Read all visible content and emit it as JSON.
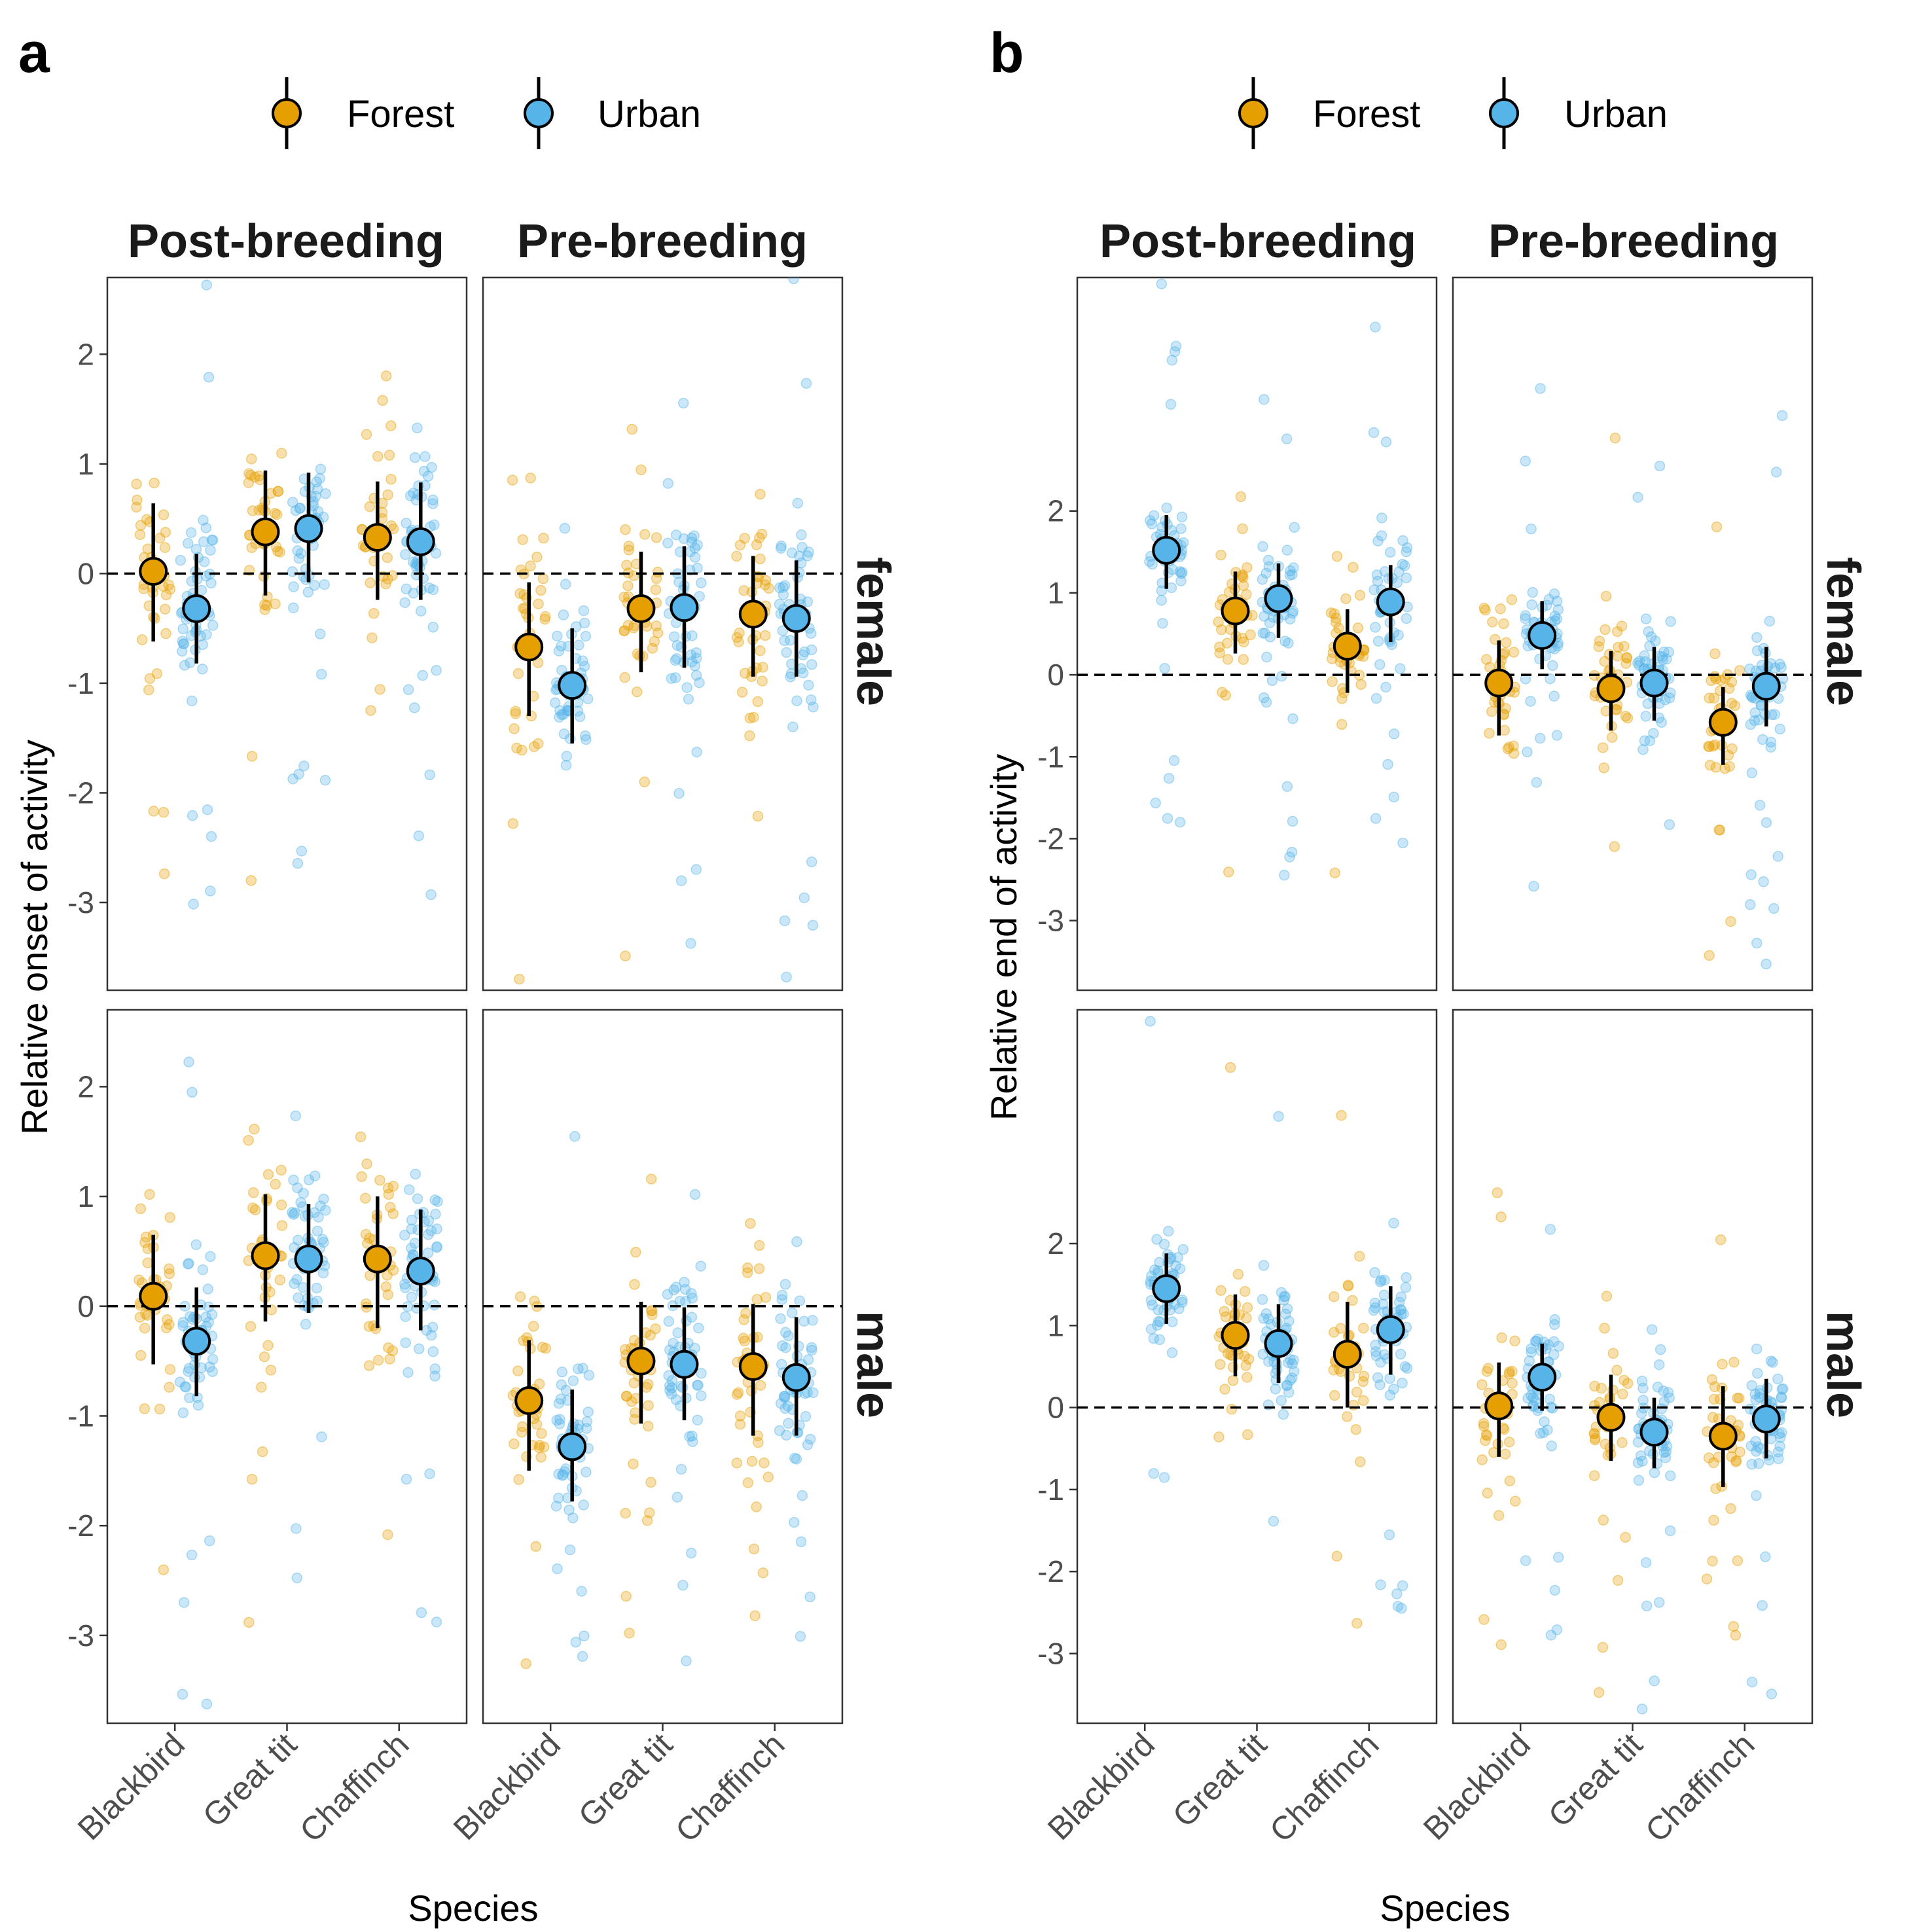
{
  "colors": {
    "forest": "#E69F00",
    "urban": "#56B4E9",
    "frame": "#333333",
    "tick_text": "#4d4d4d",
    "reference_line": "#000000"
  },
  "legend": {
    "items": [
      {
        "key": "forest",
        "label": "Forest"
      },
      {
        "key": "urban",
        "label": "Urban"
      }
    ],
    "placement": "top"
  },
  "x_axis_title": "Species",
  "chart_data": [
    {
      "panel_label": "a",
      "type": "scatter",
      "ylabel": "Relative onset of activity",
      "xlabel": "Species",
      "categories": [
        "Blackbird",
        "Great tit",
        "Chaffinch"
      ],
      "facet_columns": [
        "Post-breeding",
        "Pre-breeding"
      ],
      "facet_rows": [
        "female",
        "male"
      ],
      "ylim": [
        -3.8,
        2.7
      ],
      "yticks": [
        -3,
        -2,
        -1,
        0,
        1,
        2
      ],
      "reference_line_y": 0,
      "facets": [
        {
          "column": "Post-breeding",
          "row": "female",
          "estimates": [
            {
              "species": "Blackbird",
              "habitat": "Forest",
              "mean": 0.02,
              "lower": -0.62,
              "upper": 0.64
            },
            {
              "species": "Blackbird",
              "habitat": "Urban",
              "mean": -0.32,
              "lower": -0.82,
              "upper": 0.18
            },
            {
              "species": "Great tit",
              "habitat": "Forest",
              "mean": 0.38,
              "lower": -0.2,
              "upper": 0.94
            },
            {
              "species": "Great tit",
              "habitat": "Urban",
              "mean": 0.41,
              "lower": -0.08,
              "upper": 0.92
            },
            {
              "species": "Chaffinch",
              "habitat": "Forest",
              "mean": 0.33,
              "lower": -0.24,
              "upper": 0.84
            },
            {
              "species": "Chaffinch",
              "habitat": "Urban",
              "mean": 0.29,
              "lower": -0.24,
              "upper": 0.83
            }
          ]
        },
        {
          "column": "Pre-breeding",
          "row": "female",
          "estimates": [
            {
              "species": "Blackbird",
              "habitat": "Forest",
              "mean": -0.67,
              "lower": -1.3,
              "upper": -0.08
            },
            {
              "species": "Blackbird",
              "habitat": "Urban",
              "mean": -1.02,
              "lower": -1.55,
              "upper": -0.5
            },
            {
              "species": "Great tit",
              "habitat": "Forest",
              "mean": -0.32,
              "lower": -0.9,
              "upper": 0.2
            },
            {
              "species": "Great tit",
              "habitat": "Urban",
              "mean": -0.31,
              "lower": -0.86,
              "upper": 0.25
            },
            {
              "species": "Chaffinch",
              "habitat": "Forest",
              "mean": -0.37,
              "lower": -0.94,
              "upper": 0.16
            },
            {
              "species": "Chaffinch",
              "habitat": "Urban",
              "mean": -0.41,
              "lower": -0.94,
              "upper": 0.12
            }
          ]
        },
        {
          "column": "Post-breeding",
          "row": "male",
          "estimates": [
            {
              "species": "Blackbird",
              "habitat": "Forest",
              "mean": 0.09,
              "lower": -0.53,
              "upper": 0.65
            },
            {
              "species": "Blackbird",
              "habitat": "Urban",
              "mean": -0.32,
              "lower": -0.82,
              "upper": 0.17
            },
            {
              "species": "Great tit",
              "habitat": "Forest",
              "mean": 0.46,
              "lower": -0.14,
              "upper": 1.02
            },
            {
              "species": "Great tit",
              "habitat": "Urban",
              "mean": 0.43,
              "lower": -0.06,
              "upper": 0.93
            },
            {
              "species": "Chaffinch",
              "habitat": "Forest",
              "mean": 0.43,
              "lower": -0.2,
              "upper": 1.0
            },
            {
              "species": "Chaffinch",
              "habitat": "Urban",
              "mean": 0.32,
              "lower": -0.22,
              "upper": 0.88
            }
          ]
        },
        {
          "column": "Pre-breeding",
          "row": "male",
          "estimates": [
            {
              "species": "Blackbird",
              "habitat": "Forest",
              "mean": -0.86,
              "lower": -1.5,
              "upper": -0.31
            },
            {
              "species": "Blackbird",
              "habitat": "Urban",
              "mean": -1.28,
              "lower": -1.78,
              "upper": -0.76
            },
            {
              "species": "Great tit",
              "habitat": "Forest",
              "mean": -0.5,
              "lower": -1.07,
              "upper": 0.04
            },
            {
              "species": "Great tit",
              "habitat": "Urban",
              "mean": -0.53,
              "lower": -1.04,
              "upper": -0.01
            },
            {
              "species": "Chaffinch",
              "habitat": "Forest",
              "mean": -0.55,
              "lower": -1.18,
              "upper": 0.02
            },
            {
              "species": "Chaffinch",
              "habitat": "Urban",
              "mean": -0.65,
              "lower": -1.18,
              "upper": -0.1
            }
          ]
        }
      ]
    },
    {
      "panel_label": "b",
      "type": "scatter",
      "ylabel": "Relative end of activity",
      "xlabel": "Species",
      "categories": [
        "Blackbird",
        "Great tit",
        "Chaffinch"
      ],
      "facet_columns": [
        "Post-breeding",
        "Pre-breeding"
      ],
      "facet_rows": [
        "female",
        "male"
      ],
      "ylim": [
        -3.85,
        4.85
      ],
      "yticks": [
        -3,
        -2,
        -1,
        0,
        1,
        2
      ],
      "reference_line_y": 0,
      "facets": [
        {
          "column": "Post-breeding",
          "row": "female",
          "estimates": [
            {
              "species": "Blackbird",
              "habitat": "Urban",
              "mean": 1.52,
              "lower": 1.05,
              "upper": 1.95
            },
            {
              "species": "Great tit",
              "habitat": "Forest",
              "mean": 0.78,
              "lower": 0.26,
              "upper": 1.26
            },
            {
              "species": "Great tit",
              "habitat": "Urban",
              "mean": 0.93,
              "lower": 0.45,
              "upper": 1.36
            },
            {
              "species": "Chaffinch",
              "habitat": "Forest",
              "mean": 0.35,
              "lower": -0.22,
              "upper": 0.8
            },
            {
              "species": "Chaffinch",
              "habitat": "Urban",
              "mean": 0.89,
              "lower": 0.4,
              "upper": 1.34
            }
          ]
        },
        {
          "column": "Pre-breeding",
          "row": "female",
          "estimates": [
            {
              "species": "Blackbird",
              "habitat": "Forest",
              "mean": -0.1,
              "lower": -0.74,
              "upper": 0.42
            },
            {
              "species": "Blackbird",
              "habitat": "Urban",
              "mean": 0.48,
              "lower": 0.07,
              "upper": 0.9
            },
            {
              "species": "Great tit",
              "habitat": "Forest",
              "mean": -0.17,
              "lower": -0.68,
              "upper": 0.29
            },
            {
              "species": "Great tit",
              "habitat": "Urban",
              "mean": -0.1,
              "lower": -0.56,
              "upper": 0.34
            },
            {
              "species": "Chaffinch",
              "habitat": "Forest",
              "mean": -0.58,
              "lower": -1.1,
              "upper": -0.15
            },
            {
              "species": "Chaffinch",
              "habitat": "Urban",
              "mean": -0.14,
              "lower": -0.63,
              "upper": 0.34
            }
          ]
        },
        {
          "column": "Post-breeding",
          "row": "male",
          "estimates": [
            {
              "species": "Blackbird",
              "habitat": "Urban",
              "mean": 1.45,
              "lower": 1.02,
              "upper": 1.88
            },
            {
              "species": "Great tit",
              "habitat": "Forest",
              "mean": 0.88,
              "lower": 0.38,
              "upper": 1.38
            },
            {
              "species": "Great tit",
              "habitat": "Urban",
              "mean": 0.78,
              "lower": 0.3,
              "upper": 1.26
            },
            {
              "species": "Chaffinch",
              "habitat": "Forest",
              "mean": 0.65,
              "lower": 0.0,
              "upper": 1.29
            },
            {
              "species": "Chaffinch",
              "habitat": "Urban",
              "mean": 0.95,
              "lower": 0.4,
              "upper": 1.48
            }
          ]
        },
        {
          "column": "Pre-breeding",
          "row": "male",
          "estimates": [
            {
              "species": "Blackbird",
              "habitat": "Forest",
              "mean": 0.02,
              "lower": -0.6,
              "upper": 0.55
            },
            {
              "species": "Blackbird",
              "habitat": "Urban",
              "mean": 0.37,
              "lower": -0.04,
              "upper": 0.78
            },
            {
              "species": "Great tit",
              "habitat": "Forest",
              "mean": -0.12,
              "lower": -0.65,
              "upper": 0.4
            },
            {
              "species": "Great tit",
              "habitat": "Urban",
              "mean": -0.3,
              "lower": -0.74,
              "upper": 0.12
            },
            {
              "species": "Chaffinch",
              "habitat": "Forest",
              "mean": -0.35,
              "lower": -0.97,
              "upper": 0.26
            },
            {
              "species": "Chaffinch",
              "habitat": "Urban",
              "mean": -0.14,
              "lower": -0.62,
              "upper": 0.35
            }
          ]
        }
      ]
    }
  ]
}
